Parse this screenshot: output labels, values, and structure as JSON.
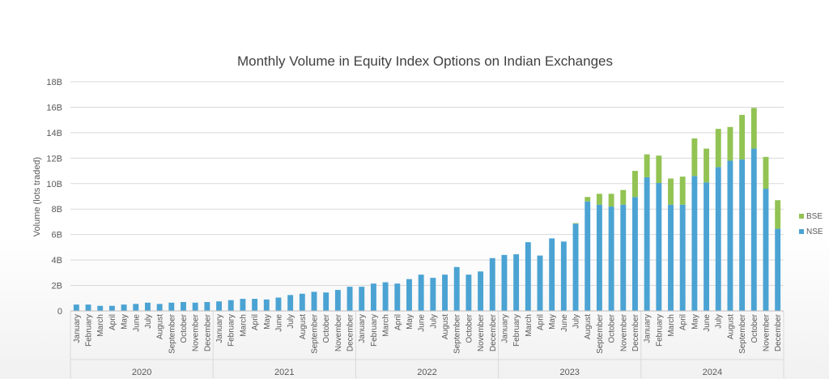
{
  "chart_data": {
    "type": "bar",
    "stacked": true,
    "title": "Monthly Volume in Equity Index Options on Indian Exchanges",
    "xlabel": "",
    "ylabel": "Volume (lots traded)",
    "ylim": [
      0,
      18
    ],
    "yticks": [
      "0",
      "2B",
      "4B",
      "6B",
      "8B",
      "10B",
      "12B",
      "14B",
      "16B",
      "18B"
    ],
    "grid": true,
    "legend_position": "right",
    "years": [
      "2020",
      "2021",
      "2022",
      "2023",
      "2024"
    ],
    "months": [
      "January",
      "February",
      "March",
      "April",
      "May",
      "June",
      "July",
      "August",
      "September",
      "October",
      "November",
      "December"
    ],
    "series": [
      {
        "name": "NSE",
        "color": "#4BA3D3",
        "values": [
          0.5,
          0.5,
          0.4,
          0.4,
          0.5,
          0.55,
          0.65,
          0.55,
          0.65,
          0.7,
          0.65,
          0.7,
          0.75,
          0.85,
          0.95,
          0.95,
          0.9,
          1.05,
          1.25,
          1.35,
          1.5,
          1.45,
          1.65,
          1.9,
          1.9,
          2.15,
          2.25,
          2.15,
          2.5,
          2.85,
          2.6,
          2.85,
          3.45,
          2.85,
          3.1,
          4.15,
          4.4,
          4.45,
          5.4,
          4.35,
          5.7,
          5.45,
          6.85,
          8.6,
          8.35,
          8.2,
          8.35,
          8.95,
          10.5,
          10.05,
          8.35,
          8.35,
          10.6,
          10.1,
          11.3,
          11.8,
          11.9,
          12.75,
          9.6,
          6.45
        ]
      },
      {
        "name": "BSE",
        "color": "#92C353",
        "values": [
          0,
          0,
          0,
          0,
          0,
          0,
          0,
          0,
          0,
          0,
          0,
          0,
          0,
          0,
          0,
          0,
          0,
          0,
          0,
          0,
          0,
          0,
          0,
          0,
          0,
          0,
          0,
          0,
          0,
          0,
          0,
          0,
          0,
          0,
          0,
          0,
          0,
          0,
          0,
          0,
          0,
          0,
          0.05,
          0.35,
          0.85,
          1.0,
          1.15,
          2.05,
          1.8,
          2.15,
          2.05,
          2.2,
          2.95,
          2.65,
          3.0,
          2.65,
          3.5,
          3.2,
          2.5,
          2.25
        ]
      }
    ],
    "legend": [
      "BSE",
      "NSE"
    ]
  }
}
